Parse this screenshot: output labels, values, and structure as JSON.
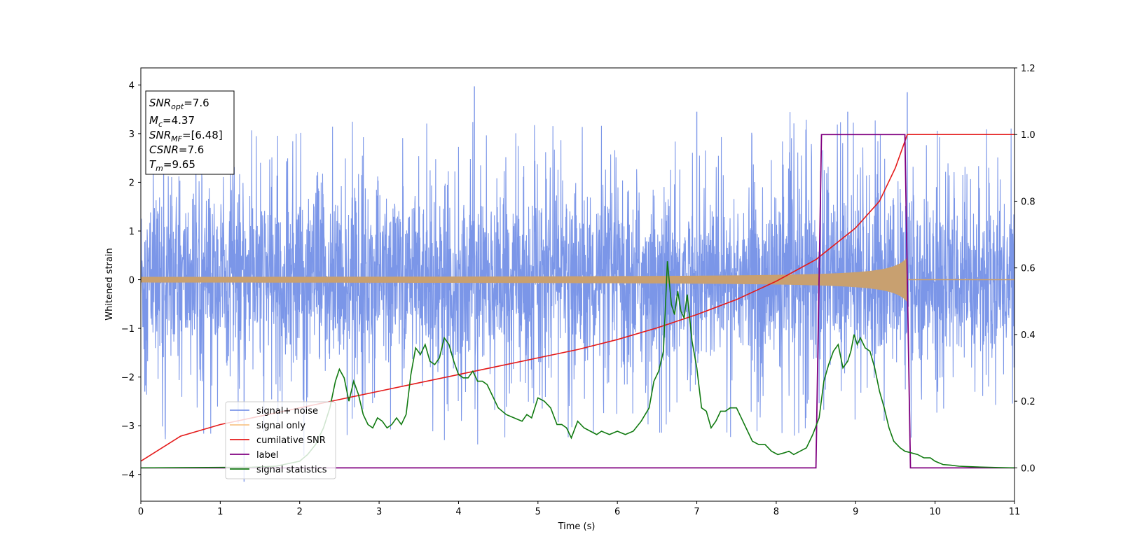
{
  "chart_data": {
    "type": "line",
    "xlabel": "Time (s)",
    "ylabel": "Whitened strain",
    "xlim": [
      0,
      11
    ],
    "ylim_left": [
      -4.55,
      4.35
    ],
    "ylim_right": [
      -0.1,
      1.2
    ],
    "x_ticks": [
      "0",
      "1",
      "2",
      "3",
      "4",
      "5",
      "6",
      "7",
      "8",
      "9",
      "10",
      "11"
    ],
    "y_ticks_left": [
      "4",
      "3",
      "2",
      "1",
      "0",
      "−1",
      "−2",
      "−3",
      "−4"
    ],
    "y_ticks_right": [
      "1.2",
      "1.0",
      "0.8",
      "0.6",
      "0.4",
      "0.2",
      "0.0"
    ],
    "grid": false,
    "legend_position": "lower-left",
    "colors": {
      "noise": "#7b96e8",
      "signal": "#c8a070",
      "signal_legend": "#f7c48a",
      "csnr": "#e41a1a",
      "label": "#800080",
      "stat": "#117a11"
    },
    "legend": [
      {
        "key": "noise",
        "text": "signal+ noise"
      },
      {
        "key": "signal_legend",
        "text": "signal only"
      },
      {
        "key": "csnr",
        "text": "cumilative SNR"
      },
      {
        "key": "label",
        "text": "label"
      },
      {
        "key": "stat",
        "text": "signal statistics"
      }
    ],
    "annotation": {
      "snr_opt": "7.6",
      "mc": "4.37",
      "snr_mf": "[6.48]",
      "csnr": "7.6",
      "tm": "9.65"
    },
    "series": [
      {
        "name": "signal+ noise",
        "axis": "left",
        "envelope_amplitude": 2.2,
        "notable_peaks": [
          [
            4.2,
            3.97
          ],
          [
            9.65,
            3.85
          ],
          [
            1.3,
            -4.15
          ],
          [
            7.0,
            3.45
          ],
          [
            8.9,
            3.45
          ],
          [
            0.05,
            -2.3
          ]
        ]
      },
      {
        "name": "signal only",
        "axis": "left",
        "end_time": 9.65,
        "amplitude_start": 0.04,
        "amplitude_end": 0.45
      },
      {
        "name": "cumilative SNR",
        "axis": "right",
        "x": [
          0,
          0.5,
          1,
          1.5,
          2,
          2.5,
          3,
          3.5,
          4,
          4.5,
          5,
          5.5,
          6,
          6.5,
          7,
          7.5,
          8,
          8.5,
          9,
          9.3,
          9.5,
          9.65,
          11
        ],
        "y": [
          0.02,
          0.095,
          0.13,
          0.155,
          0.18,
          0.205,
          0.23,
          0.255,
          0.28,
          0.305,
          0.33,
          0.355,
          0.385,
          0.42,
          0.46,
          0.505,
          0.56,
          0.625,
          0.72,
          0.8,
          0.9,
          1.0,
          1.0
        ]
      },
      {
        "name": "label",
        "axis": "right",
        "x": [
          0,
          8.5,
          8.57,
          9.62,
          9.69,
          11
        ],
        "y": [
          0,
          0,
          1,
          1,
          0,
          0
        ]
      },
      {
        "name": "signal statistics",
        "axis": "right",
        "x": [
          0,
          1.4,
          1.7,
          2.0,
          2.1,
          2.2,
          2.3,
          2.38,
          2.45,
          2.5,
          2.56,
          2.62,
          2.68,
          2.74,
          2.8,
          2.86,
          2.92,
          2.98,
          3.04,
          3.1,
          3.16,
          3.22,
          3.28,
          3.34,
          3.4,
          3.46,
          3.52,
          3.58,
          3.64,
          3.7,
          3.76,
          3.82,
          3.88,
          3.94,
          4.0,
          4.06,
          4.12,
          4.18,
          4.24,
          4.3,
          4.36,
          4.42,
          4.5,
          4.6,
          4.7,
          4.8,
          4.86,
          4.92,
          5.0,
          5.08,
          5.16,
          5.24,
          5.3,
          5.36,
          5.42,
          5.5,
          5.58,
          5.66,
          5.74,
          5.8,
          5.9,
          6.0,
          6.1,
          6.2,
          6.3,
          6.4,
          6.46,
          6.52,
          6.58,
          6.63,
          6.68,
          6.72,
          6.76,
          6.8,
          6.84,
          6.88,
          6.94,
          7.0,
          7.06,
          7.12,
          7.18,
          7.24,
          7.3,
          7.36,
          7.42,
          7.5,
          7.56,
          7.62,
          7.7,
          7.78,
          7.86,
          7.94,
          8.02,
          8.1,
          8.16,
          8.22,
          8.3,
          8.38,
          8.46,
          8.54,
          8.6,
          8.66,
          8.72,
          8.78,
          8.84,
          8.9,
          8.94,
          8.98,
          9.02,
          9.06,
          9.12,
          9.18,
          9.24,
          9.3,
          9.36,
          9.42,
          9.48,
          9.56,
          9.62,
          9.7,
          9.78,
          9.86,
          9.94,
          10.0,
          10.1,
          10.2,
          10.3,
          10.5,
          10.8,
          11
        ],
        "y": [
          0,
          0.002,
          0.005,
          0.02,
          0.04,
          0.07,
          0.12,
          0.18,
          0.26,
          0.296,
          0.27,
          0.2,
          0.26,
          0.22,
          0.16,
          0.13,
          0.12,
          0.15,
          0.14,
          0.12,
          0.13,
          0.15,
          0.13,
          0.16,
          0.28,
          0.36,
          0.34,
          0.37,
          0.32,
          0.31,
          0.33,
          0.39,
          0.37,
          0.32,
          0.28,
          0.27,
          0.27,
          0.29,
          0.26,
          0.26,
          0.25,
          0.22,
          0.18,
          0.16,
          0.15,
          0.14,
          0.16,
          0.15,
          0.21,
          0.2,
          0.18,
          0.13,
          0.13,
          0.12,
          0.09,
          0.14,
          0.12,
          0.11,
          0.1,
          0.11,
          0.1,
          0.11,
          0.1,
          0.11,
          0.14,
          0.18,
          0.26,
          0.29,
          0.35,
          0.62,
          0.49,
          0.46,
          0.53,
          0.47,
          0.45,
          0.52,
          0.38,
          0.3,
          0.18,
          0.17,
          0.12,
          0.14,
          0.17,
          0.17,
          0.18,
          0.18,
          0.15,
          0.12,
          0.08,
          0.07,
          0.07,
          0.05,
          0.04,
          0.045,
          0.05,
          0.04,
          0.05,
          0.06,
          0.1,
          0.15,
          0.26,
          0.31,
          0.35,
          0.37,
          0.3,
          0.32,
          0.35,
          0.4,
          0.37,
          0.39,
          0.36,
          0.35,
          0.3,
          0.23,
          0.18,
          0.12,
          0.08,
          0.06,
          0.05,
          0.045,
          0.04,
          0.03,
          0.03,
          0.02,
          0.01,
          0.008,
          0.005,
          0.003,
          0.001,
          0
        ]
      }
    ]
  }
}
